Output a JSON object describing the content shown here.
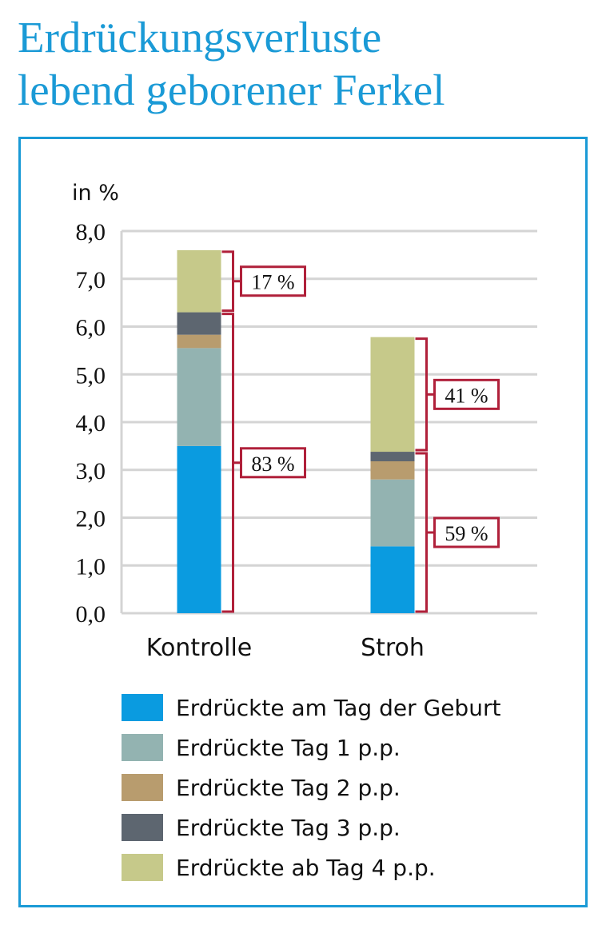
{
  "title_lines": [
    "Erdrückungsverluste",
    "lebend geborener Ferkel"
  ],
  "chart_data": {
    "type": "bar",
    "stacked": true,
    "unit_label": "in %",
    "ylim": [
      0,
      8
    ],
    "yticks": [
      "0,0",
      "1,0",
      "2,0",
      "3,0",
      "4,0",
      "5,0",
      "6,0",
      "7,0",
      "8,0"
    ],
    "grid": true,
    "categories": [
      "Kontrolle",
      "Stroh"
    ],
    "series": [
      {
        "name": "Erdrückte am Tag der Geburt",
        "color": "#0a9be0",
        "values": [
          3.5,
          1.4
        ]
      },
      {
        "name": "Erdrückte Tag 1 p.p.",
        "color": "#93b3b1",
        "values": [
          2.05,
          1.4
        ]
      },
      {
        "name": "Erdrückte Tag 2 p.p.",
        "color": "#b89c6e",
        "values": [
          0.28,
          0.38
        ]
      },
      {
        "name": "Erdrückte Tag 3 p.p.",
        "color": "#5d6670",
        "values": [
          0.47,
          0.2
        ]
      },
      {
        "name": "Erdrückte ab Tag 4 p.p.",
        "color": "#c6c98a",
        "values": [
          1.3,
          2.4
        ]
      }
    ],
    "annotations": [
      {
        "category": "Kontrolle",
        "from": 0,
        "to": 6.3,
        "label": "83 %"
      },
      {
        "category": "Kontrolle",
        "from": 6.3,
        "to": 7.6,
        "label": "17 %"
      },
      {
        "category": "Stroh",
        "from": 0,
        "to": 3.38,
        "label": "59 %"
      },
      {
        "category": "Stroh",
        "from": 3.38,
        "to": 5.78,
        "label": "41 %"
      }
    ],
    "annotation_color": "#b0203a"
  }
}
